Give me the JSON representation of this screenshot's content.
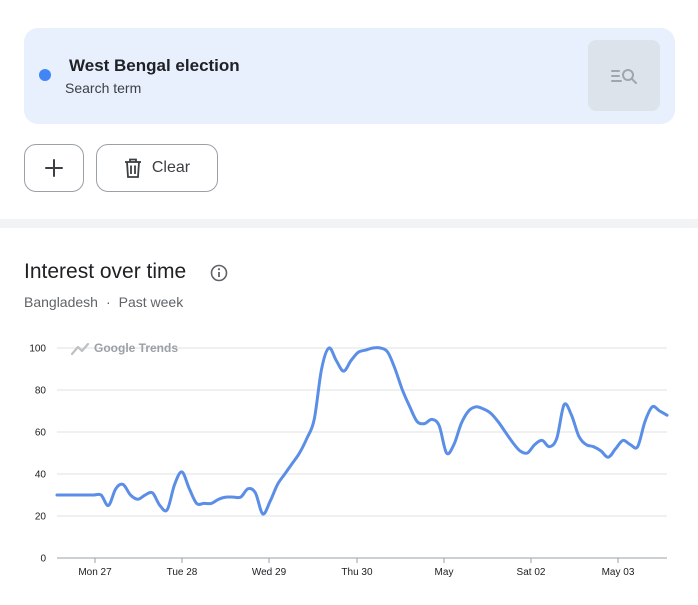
{
  "search_term": {
    "title": "West Bengal election",
    "subtitle": "Search term",
    "color": "#4285f4"
  },
  "actions": {
    "clear_label": "Clear"
  },
  "section": {
    "title": "Interest over time",
    "region": "Bangladesh",
    "separator": "·",
    "period": "Past week"
  },
  "watermark": "Google Trends",
  "colors": {
    "line": "#5b8ee6",
    "grid": "#e0e0e0"
  },
  "chart_data": {
    "type": "line",
    "x_tick_labels": [
      "Mon 27",
      "Tue 28",
      "Wed 29",
      "Thu 30",
      "May",
      "Sat 02",
      "May 03"
    ],
    "y_ticks": [
      0,
      20,
      40,
      60,
      80,
      100
    ],
    "ylim": [
      0,
      100
    ],
    "grid": true,
    "series": [
      {
        "values": [
          30,
          30,
          30,
          30,
          30,
          30,
          30,
          25,
          33,
          35,
          30,
          28,
          30,
          31,
          25,
          23,
          35,
          41,
          33,
          26,
          26,
          26,
          28,
          29,
          29,
          29,
          33,
          31,
          21,
          27,
          35,
          40,
          45,
          50,
          57,
          66,
          90,
          100,
          94,
          89,
          94,
          98,
          99,
          100,
          100,
          98,
          90,
          80,
          72,
          65,
          64,
          66,
          63,
          50,
          54,
          64,
          70,
          72,
          71,
          69,
          65,
          60,
          55,
          51,
          50,
          54,
          56,
          53,
          57,
          73,
          68,
          58,
          54,
          53,
          51,
          48,
          52,
          56,
          54,
          53,
          65,
          72,
          70,
          68
        ]
      }
    ]
  }
}
